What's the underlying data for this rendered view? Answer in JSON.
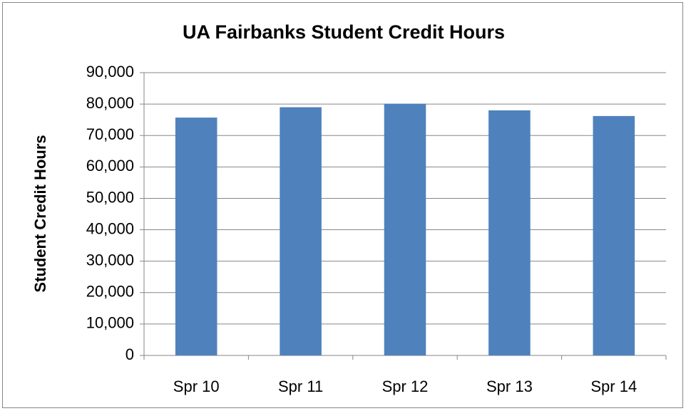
{
  "chart_data": {
    "type": "bar",
    "title": "UA Fairbanks Student Credit Hours",
    "y_label": "Student Credit Hours",
    "categories": [
      "Spr 10",
      "Spr 11",
      "Spr 12",
      "Spr 13",
      "Spr 14"
    ],
    "values": [
      75700,
      79000,
      80100,
      78000,
      76200
    ],
    "color": "#4f81bd",
    "ylim": [
      0,
      90000
    ],
    "yticks": [
      0,
      {
        "value": 10000,
        "label": "10,000"
      },
      {
        "value": 20000,
        "label": "20,000"
      },
      {
        "value": 30000,
        "label": "30,000"
      },
      {
        "value": 40000,
        "label": "40,000"
      },
      {
        "value": 50000,
        "label": "50,000"
      },
      {
        "value": 60000,
        "label": "60,000"
      },
      {
        "value": 70000,
        "label": "70,000"
      },
      {
        "value": 80000,
        "label": "80,000"
      },
      {
        "value": 90000,
        "label": "90,000"
      }
    ],
    "grid": true
  }
}
